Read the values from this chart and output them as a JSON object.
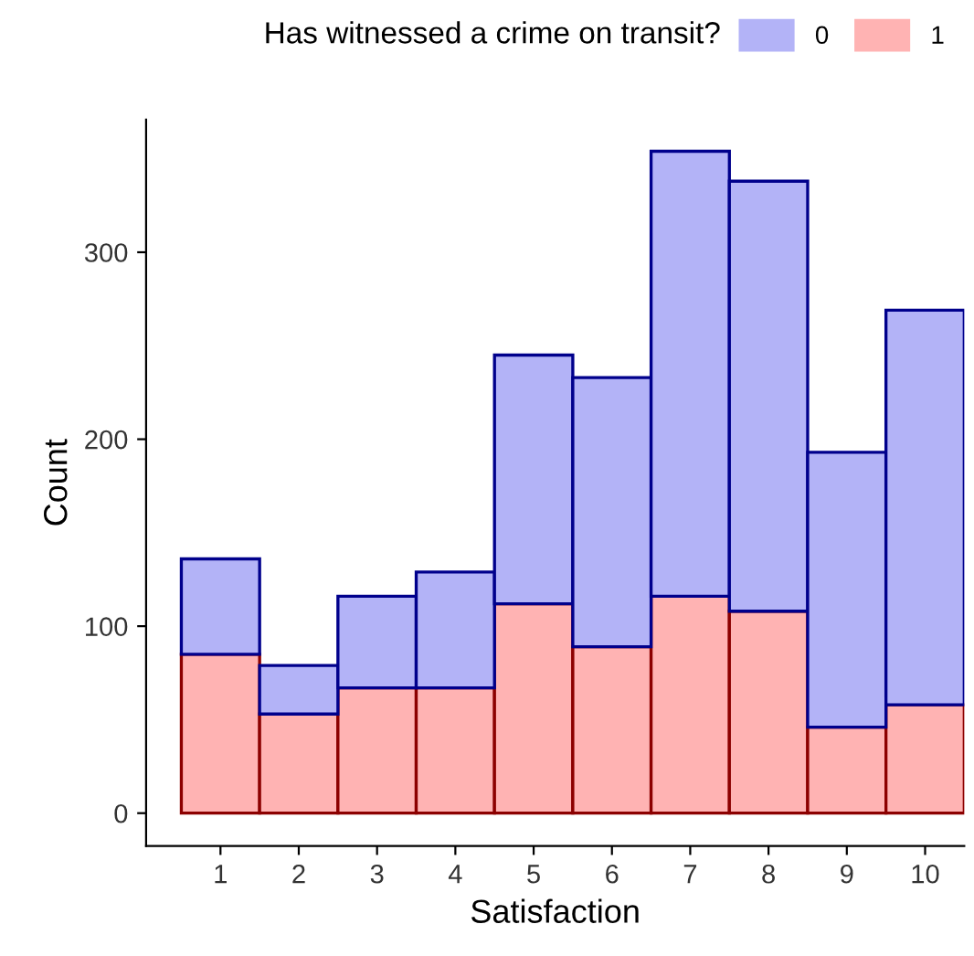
{
  "chart_data": {
    "type": "bar",
    "stacked": true,
    "xlabel": "Satisfaction",
    "ylabel": "Count",
    "legend_title": "Has witnessed a crime on transit?",
    "legend": "top",
    "grid": false,
    "categories": [
      "1",
      "2",
      "3",
      "4",
      "5",
      "6",
      "7",
      "8",
      "9",
      "10"
    ],
    "series": [
      {
        "name": "1",
        "color": "#ffb3b3",
        "values": [
          85,
          53,
          67,
          67,
          112,
          89,
          116,
          108,
          46,
          58
        ]
      },
      {
        "name": "0",
        "color": "#b3b3f7",
        "values": [
          51,
          26,
          49,
          62,
          133,
          144,
          238,
          230,
          147,
          211
        ]
      }
    ],
    "ylim": [
      -17.6,
      371
    ],
    "yticks": [
      0,
      100,
      200,
      300
    ]
  }
}
